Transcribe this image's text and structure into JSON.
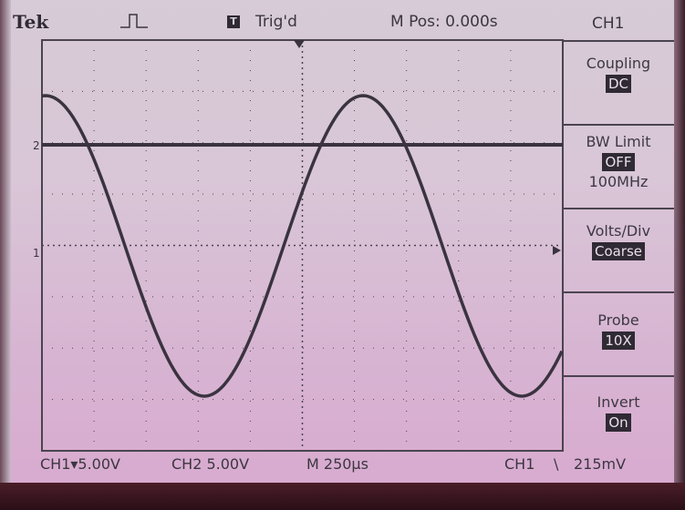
{
  "header": {
    "brand": "Tek",
    "trigger_badge": "T",
    "trigger_status": "Trig'd",
    "main_position": "M Pos: 0.000s"
  },
  "menu": {
    "title": "CH1",
    "items": [
      {
        "label": "Coupling",
        "value": "DC",
        "extra": ""
      },
      {
        "label": "BW Limit",
        "value": "OFF",
        "extra": "100MHz"
      },
      {
        "label": "Volts/Div",
        "value": "Coarse",
        "extra": ""
      },
      {
        "label": "Probe",
        "value": "10X",
        "extra": ""
      },
      {
        "label": "Invert",
        "value": "On",
        "extra": ""
      }
    ]
  },
  "markers": {
    "ch2": "2",
    "ch1": "1"
  },
  "footer": {
    "ch1_scale": "CH1▾5.00V",
    "ch2_scale": "CH2  5.00V",
    "time_scale": "M 250μs",
    "trigger_source": "CH1",
    "trigger_slope": "\\",
    "trigger_level": "215mV"
  },
  "colors": {
    "trace": "#3a3340",
    "screen_bg": "#d8c3d6",
    "grid": "#4a4450"
  }
}
